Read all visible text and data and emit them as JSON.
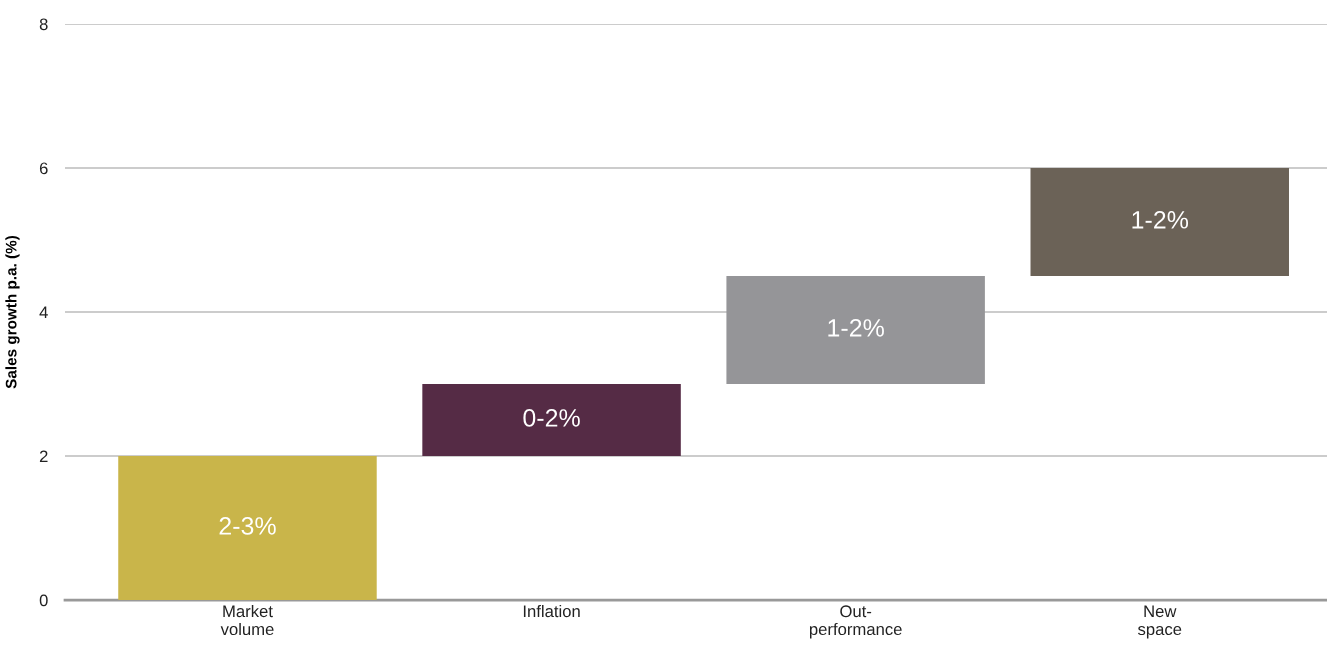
{
  "chart_data": {
    "type": "bar",
    "ylabel": "Sales growth p.a. (%)",
    "categories": [
      "Market\nvolume",
      "Inflation",
      "Out-\nperformance",
      "New\nspace"
    ],
    "values": [
      2,
      1,
      1.5,
      1.5
    ],
    "base": [
      0,
      2,
      3,
      4.5
    ],
    "colors": [
      "#c9b54a",
      "#552b45",
      "#959598",
      "#6b6257"
    ],
    "annotations": [
      "2-3%",
      "0-2%",
      "1-2%",
      "1-2%"
    ],
    "ylim": [
      0,
      8
    ],
    "yticks": [
      0,
      2,
      4,
      6,
      8
    ],
    "grid": "y"
  }
}
